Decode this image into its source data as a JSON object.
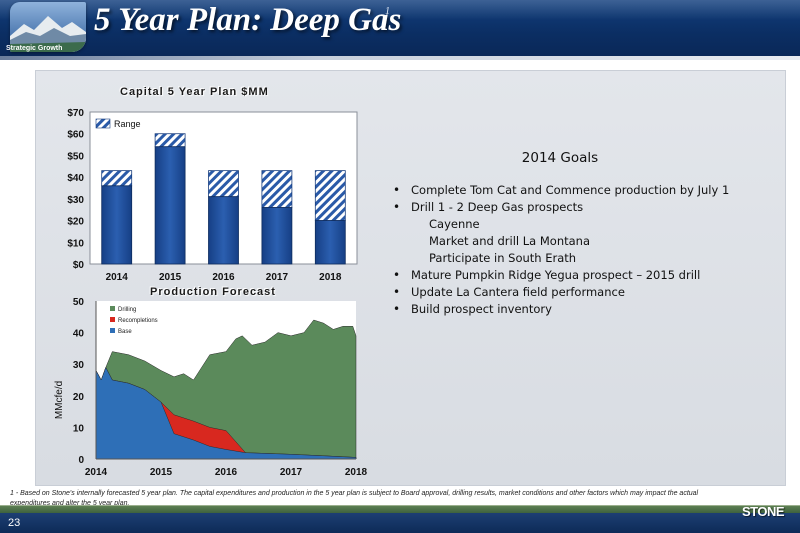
{
  "header": {
    "title": "5 Year Plan: Deep Gas",
    "title_note": "1",
    "subtitle": "Strategic Growth"
  },
  "goals": {
    "title": "2014 Goals",
    "items": [
      {
        "text": "Complete Tom Cat and Commence production by July 1",
        "level": 0
      },
      {
        "text": "Drill 1 - 2 Deep Gas prospects",
        "level": 0
      },
      {
        "text": "Cayenne",
        "level": 1
      },
      {
        "text": "Market and drill La Montana",
        "level": 1
      },
      {
        "text": "Participate in South Erath",
        "level": 1
      },
      {
        "text": "Mature Pumpkin Ridge Yegua prospect – 2015 drill",
        "level": 0
      },
      {
        "text": "Update La Cantera field performance",
        "level": 0
      },
      {
        "text": "Build prospect inventory",
        "level": 0
      }
    ]
  },
  "chart_data": [
    {
      "type": "bar",
      "title": "Capital 5 Year Plan $MM",
      "categories": [
        "2014",
        "2015",
        "2016",
        "2017",
        "2018"
      ],
      "series": [
        {
          "name": "",
          "values": [
            36,
            54,
            31,
            26,
            20
          ]
        },
        {
          "name": "Range",
          "values": [
            7,
            6,
            12,
            17,
            23
          ]
        }
      ],
      "stacked": true,
      "ylim": [
        0,
        70
      ],
      "yticks": [
        "$0",
        "$10",
        "$20",
        "$30",
        "$40",
        "$50",
        "$60",
        "$70"
      ],
      "legend": "top-left",
      "colors": {
        "base": "#1f4e9c",
        "range": "#2a5aa8"
      }
    },
    {
      "type": "area",
      "title": "Production Forecast",
      "ylabel": "MMcfe/d",
      "xlabel": "",
      "xlim": [
        2014,
        2018
      ],
      "ylim": [
        0,
        50
      ],
      "xticks": [
        "2014",
        "2015",
        "2016",
        "2017",
        "2018"
      ],
      "yticks": [
        "0",
        "10",
        "20",
        "30",
        "40",
        "50"
      ],
      "legend": "top-left",
      "series": [
        {
          "name": "Base",
          "color": "#2e6fb7",
          "points": [
            [
              2014,
              28
            ],
            [
              2014.08,
              25
            ],
            [
              2014.15,
              29
            ],
            [
              2014.25,
              25
            ],
            [
              2014.5,
              24
            ],
            [
              2014.75,
              22
            ],
            [
              2015,
              18
            ],
            [
              2015.2,
              8
            ],
            [
              2015.5,
              6
            ],
            [
              2015.75,
              4
            ],
            [
              2016,
              3
            ],
            [
              2016.3,
              2
            ],
            [
              2017,
              1.5
            ],
            [
              2017.5,
              1
            ],
            [
              2018,
              0.5
            ]
          ]
        },
        {
          "name": "Recompletions",
          "color": "#d8281f",
          "points": [
            [
              2014,
              28
            ],
            [
              2014.08,
              25
            ],
            [
              2014.15,
              29
            ],
            [
              2014.25,
              25
            ],
            [
              2014.5,
              24
            ],
            [
              2014.75,
              22
            ],
            [
              2015,
              18
            ],
            [
              2015.2,
              14
            ],
            [
              2015.5,
              12
            ],
            [
              2015.75,
              10
            ],
            [
              2016,
              9
            ],
            [
              2016.3,
              2
            ],
            [
              2017,
              1.5
            ],
            [
              2017.5,
              1
            ],
            [
              2018,
              0.5
            ]
          ]
        },
        {
          "name": "Drilling",
          "color": "#5b8a5b",
          "points": [
            [
              2014,
              28
            ],
            [
              2014.08,
              25
            ],
            [
              2014.15,
              29
            ],
            [
              2014.25,
              34
            ],
            [
              2014.5,
              33
            ],
            [
              2014.75,
              31
            ],
            [
              2015,
              28
            ],
            [
              2015.2,
              26
            ],
            [
              2015.35,
              27
            ],
            [
              2015.5,
              25
            ],
            [
              2015.75,
              33
            ],
            [
              2016,
              34
            ],
            [
              2016.15,
              38
            ],
            [
              2016.25,
              39
            ],
            [
              2016.4,
              36
            ],
            [
              2016.6,
              37
            ],
            [
              2016.8,
              40
            ],
            [
              2017,
              39
            ],
            [
              2017.2,
              40
            ],
            [
              2017.35,
              44
            ],
            [
              2017.5,
              43
            ],
            [
              2017.65,
              41
            ],
            [
              2017.8,
              42
            ],
            [
              2017.95,
              42
            ],
            [
              2018,
              39
            ]
          ]
        }
      ]
    }
  ],
  "footnote": "1 - Based on Stone's internally forecasted 5 year plan. The capital expenditures and production in the 5 year plan is subject to Board approval, drilling results, market conditions and other factors which may impact the actual expenditures and alter the 5 year plan.",
  "footer": {
    "page_number": "23",
    "brand": "STONE"
  }
}
